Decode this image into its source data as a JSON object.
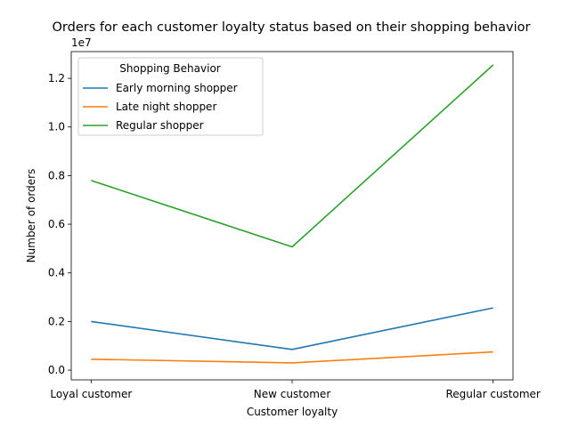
{
  "chart_data": {
    "type": "line",
    "title": "Orders for each customer loyalty status based on their shopping behavior",
    "xlabel": "Customer loyalty",
    "ylabel": "Number of orders",
    "y_offset_label": "1e7",
    "categories": [
      "Loyal customer",
      "New customer",
      "Regular customer"
    ],
    "y_ticks": [
      0.0,
      0.2,
      0.4,
      0.6,
      0.8,
      1.0,
      1.2
    ],
    "y_tick_labels": [
      "0.0",
      "0.2",
      "0.4",
      "0.6",
      "0.8",
      "1.0",
      "1.2"
    ],
    "ylim": [
      -400000,
      13100000
    ],
    "y_scale": 10000000,
    "legend": {
      "title": "Shopping Behavior",
      "position": "upper-left"
    },
    "grid": false,
    "series": [
      {
        "name": "Early morning shopper",
        "color": "#1f77b4",
        "values": [
          2000000,
          850000,
          2560000
        ]
      },
      {
        "name": "Late night shopper",
        "color": "#ff7f0e",
        "values": [
          450000,
          300000,
          750000
        ]
      },
      {
        "name": "Regular shopper",
        "color": "#2ca02c",
        "values": [
          7800000,
          5070000,
          12550000
        ]
      }
    ]
  }
}
